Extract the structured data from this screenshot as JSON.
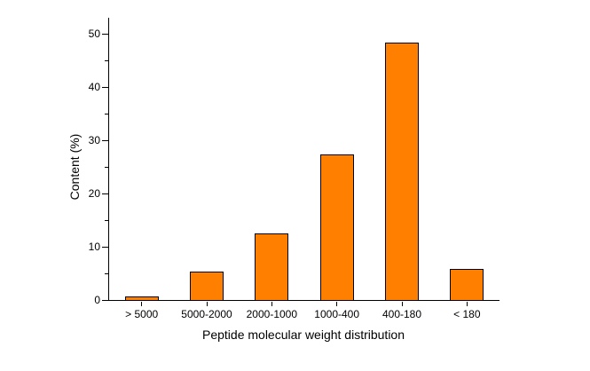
{
  "chart_data": {
    "type": "bar",
    "categories": [
      "> 5000",
      "5000-2000",
      "2000-1000",
      "1000-400",
      "400-180",
      "< 180"
    ],
    "values": [
      0.6,
      5.4,
      12.5,
      27.4,
      48.4,
      5.9
    ],
    "title": "",
    "xlabel": "Peptide molecular weight distribution",
    "ylabel": "Content (%)",
    "ylim": [
      0,
      50
    ],
    "yticks": [
      0,
      10,
      20,
      30,
      40,
      50
    ],
    "minor_tick_step": 5,
    "bar_color": "#FF8000",
    "bar_border_color": "#000000",
    "axis_color": "#000000",
    "background_color": "#FFFFFF",
    "legend": "none",
    "grid": false
  }
}
